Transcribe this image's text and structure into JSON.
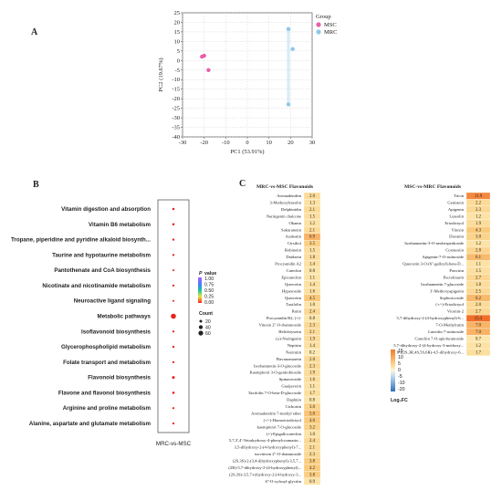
{
  "panels": {
    "a": "A",
    "b": "B",
    "c": "C"
  },
  "chart_data": [
    {
      "type": "scatter",
      "panel": "A",
      "xlabel": "PC1 (53.91%)",
      "ylabel": "PC2 (19.67%)",
      "xlim": [
        -30,
        30
      ],
      "ylim": [
        -40,
        25
      ],
      "xticks": [
        "-30",
        "-20",
        "-10",
        "0",
        "10",
        "20",
        "30"
      ],
      "yticks": [
        "25",
        "20",
        "15",
        "10",
        "5",
        "0",
        "-5",
        "-10",
        "-15",
        "-20",
        "-25",
        "-30",
        "-35",
        "-40"
      ],
      "grid": true,
      "legend": {
        "title": "Group",
        "placement": "top-right"
      },
      "series": [
        {
          "name": "MSC",
          "color": "#e85fa8",
          "points": [
            [
              -21,
              2
            ],
            [
              -20,
              2.5
            ],
            [
              -18,
              -5
            ]
          ]
        },
        {
          "name": "MRC",
          "color": "#8cc8e8",
          "points": [
            [
              19,
              16.5
            ],
            [
              21,
              6
            ],
            [
              19,
              -23
            ]
          ]
        }
      ]
    },
    {
      "type": "bubble",
      "panel": "B",
      "xlabel": "MRC-vs-MSC",
      "categories": [
        "Vitamin digestion and absorption",
        "Vitamin B6 metabolism",
        "Tropane, piperidine and pyridine alkaloid biosynth...",
        "Taurine and hypotaurine metabolism",
        "Pantothenate and CoA biosynthesis",
        "Nicotinate and nicotinamide metabolism",
        "Neuroactive ligand signaling",
        "Metabolic pathways",
        "Isoflavonoid biosynthesis",
        "Glycerophospholipid metabolism",
        "Folate transport and metabolism",
        "Flavonoid biosynthesis",
        "Flavone and flavonol biosynthesis",
        "Arginine and proline metabolism",
        "Alanine, aspartate and glutamate metabolism"
      ],
      "count": [
        12,
        12,
        10,
        10,
        8,
        10,
        8,
        60,
        10,
        10,
        10,
        18,
        14,
        10,
        10
      ],
      "p_value": [
        0.02,
        0.03,
        0.05,
        0.03,
        0.05,
        0.03,
        0.04,
        0.0,
        0.03,
        0.04,
        0.05,
        0.0,
        0.02,
        0.03,
        0.05
      ],
      "legend": {
        "color_title": "P value",
        "color_ticks": [
          "1.00",
          "0.75",
          "0.50",
          "0.25",
          "0.00"
        ],
        "size_title": "Count",
        "size_ticks": [
          "20",
          "40",
          "60"
        ],
        "placement": "right"
      }
    },
    {
      "type": "heatmap",
      "panel": "C",
      "legend": {
        "title": "Log₂FC",
        "ticks": [
          "15",
          "10",
          "5",
          "0",
          "-5",
          "-10",
          "-20"
        ]
      },
      "tables": [
        {
          "title": "MRC-vs-MSC Flavonoids",
          "rows": [
            [
              "Aromadendrin",
              "2.0"
            ],
            [
              "3-Methoxyluteolin",
              "1.3"
            ],
            [
              "Delphinidin",
              "2.1"
            ],
            [
              "Naringenin chalcone",
              "1.5"
            ],
            [
              "Okanin",
              "1.2"
            ],
            [
              "Sakuranetin",
              "2.1"
            ],
            [
              "Azaleatin",
              "6.9"
            ],
            [
              "Cirsiliol",
              "3.5"
            ],
            [
              "Robinetin",
              "1.5"
            ],
            [
              "Daidzein",
              "1.8"
            ],
            [
              "Procyanidin A2",
              "1.4"
            ],
            [
              "Catechin",
              "0.8"
            ],
            [
              "Epicatechin",
              "1.1"
            ],
            [
              "Quercetin",
              "1.4"
            ],
            [
              "Hyperoside",
              "1.6"
            ],
            [
              "Quercetin",
              "4.5"
            ],
            [
              "Taxifolin",
              "1.0"
            ],
            [
              "Rutin",
              "2.4"
            ],
            [
              "Procyanidin B2, (+)-",
              "0.8"
            ],
            [
              "Vitexin 2''-O-rhamnoside",
              "2.3"
            ],
            [
              "Helichrysetin",
              "2.1"
            ],
            [
              "(±)-Naringenin",
              "1.9"
            ],
            [
              "Nepitrin",
              "1.4"
            ],
            [
              "Narirutin",
              "0.2"
            ],
            [
              "Flavanomarein",
              "2.0"
            ],
            [
              "Isorhamnetin-3-O-glucoside",
              "2.3"
            ],
            [
              "Kaempferol 3-O-gentiobioside",
              "1.9"
            ],
            [
              "Spinaceoside",
              "1.6"
            ],
            [
              "Guaijaverin",
              "1.1"
            ],
            [
              "Taxifolin 7-O-beta-D-glucoside",
              "1.7"
            ],
            [
              "Daphnin",
              "0.8"
            ],
            [
              "Cichoriin",
              "3.0"
            ],
            [
              "Aromadendrin 7-methyl ether",
              "5.0"
            ],
            [
              "(+/-)-Homoeriodictyol",
              "4.0"
            ],
            [
              "kaempferol 7-O-glucoside",
              "3.2"
            ],
            [
              "(+)-Epigallocatechin",
              "1.0"
            ],
            [
              "5,7,3',4'-Tetrahydroxy-4-phenylcoumarin...",
              "2.4"
            ],
            [
              "3,5-dihydroxy-2-(4-hydroxyphenyl)-7...",
              "2.1"
            ],
            [
              "isovitexin 2''-O-rhamnoside",
              "2.3"
            ],
            [
              "(2S,3S)-2-(3,4-dihydroxyphenyl)-3,5,7...",
              "3.8"
            ],
            [
              "(2R)-5,7-dihydroxy-2-(4-hydroxyphenyl)...",
              "4.2"
            ],
            [
              "(2S,3S)-3,5,7-trihydroxy-2-[4-hydroxy-3...",
              "3.8"
            ],
            [
              "6''-O-xylosyl-glycitin",
              "0.9"
            ]
          ]
        },
        {
          "title": "MSC-vs-MRC Flavonoids",
          "rows": [
            [
              "Tricin",
              "11.9"
            ],
            [
              "Genistein",
              "2.2"
            ],
            [
              "Apigenin",
              "2.3"
            ],
            [
              "Luteolin",
              "1.2"
            ],
            [
              "Eriodictyol",
              "1.9"
            ],
            [
              "Vitexin",
              "4.3"
            ],
            [
              "Diosmin",
              "3.0"
            ],
            [
              "Isorhamnetin-3-O-neohespeidoside",
              "1.2"
            ],
            [
              "Cosmosiin",
              "2.8"
            ],
            [
              "Apigenin-7-O-rutinoside",
              "6.1"
            ],
            [
              "Quercetin 3-O-(6''-galloyl)-beta-D...",
              "1.1"
            ],
            [
              "Poncirin",
              "1.5"
            ],
            [
              "Pectolinarin",
              "2.7"
            ],
            [
              "Isorhamnetin 7-glucoside",
              "1.8"
            ],
            [
              "3'-Methoxyapigenin",
              "2.5"
            ],
            [
              "Sophoricoside",
              "6.2"
            ],
            [
              "(+/-)-Eriodictyol",
              "2.0"
            ],
            [
              "Vicenin-2",
              "2.7"
            ],
            [
              "5,7-dihydroxy-2-(4-hydroxyphenyl)-6...",
              "15.3"
            ],
            [
              "7-O-Methylrutin",
              "7.0"
            ],
            [
              "Luteolin 7-rutinoside",
              "7.0"
            ],
            [
              "Catechin 7-O-apiofuranoside",
              "0.7"
            ],
            [
              "5,7-dihydroxy-2-(4-hydroxy-3-methoxy...",
              "1.2"
            ],
            [
              "8-[(2S,3R,4S,5S,6R)-4,5-dihydroxy-6...",
              "1.7"
            ]
          ]
        }
      ]
    }
  ]
}
